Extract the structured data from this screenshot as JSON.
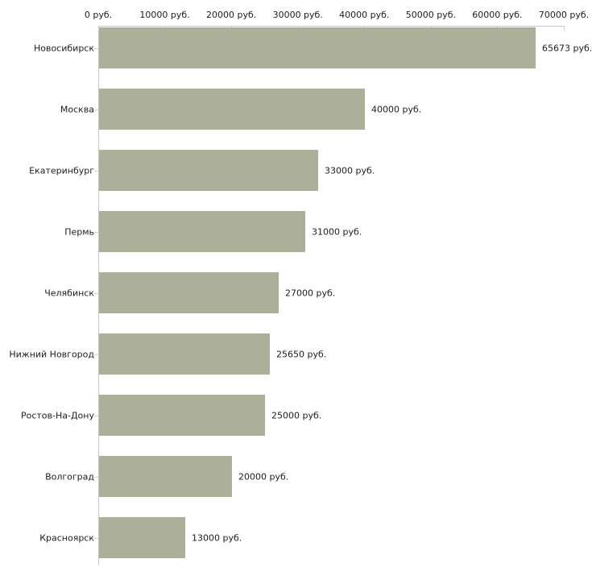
{
  "chart_data": {
    "type": "bar",
    "orientation": "horizontal",
    "title": "",
    "xlabel": "",
    "ylabel": "",
    "unit": "руб.",
    "categories": [
      "Новосибирск",
      "Москва",
      "Екатеринбург",
      "Пермь",
      "Челябинск",
      "Нижний Новгород",
      "Ростов-На-Дону",
      "Волгоград",
      "Красноярск"
    ],
    "values": [
      65673,
      40000,
      33000,
      31000,
      27000,
      25650,
      25000,
      20000,
      13000
    ],
    "value_labels": [
      "65673 руб.",
      "40000 руб.",
      "33000 руб.",
      "31000 руб.",
      "27000 руб.",
      "25650 руб.",
      "25000 руб.",
      "20000 руб.",
      "13000 руб."
    ],
    "xlim": [
      0,
      70000
    ],
    "x_ticks": [
      0,
      10000,
      20000,
      30000,
      40000,
      50000,
      60000,
      70000
    ],
    "x_tick_labels": [
      "0 руб.",
      "10000 руб.",
      "20000 руб.",
      "30000 руб.",
      "40000 руб.",
      "50000 руб.",
      "60000 руб.",
      "70000 руб."
    ],
    "grid": false,
    "legend": false,
    "colors": {
      "bar": "#acb099",
      "axis": "#c6c6c6",
      "tick": "#d9d5ae",
      "text": "#1c1c1c",
      "background": "#ffffff"
    }
  }
}
